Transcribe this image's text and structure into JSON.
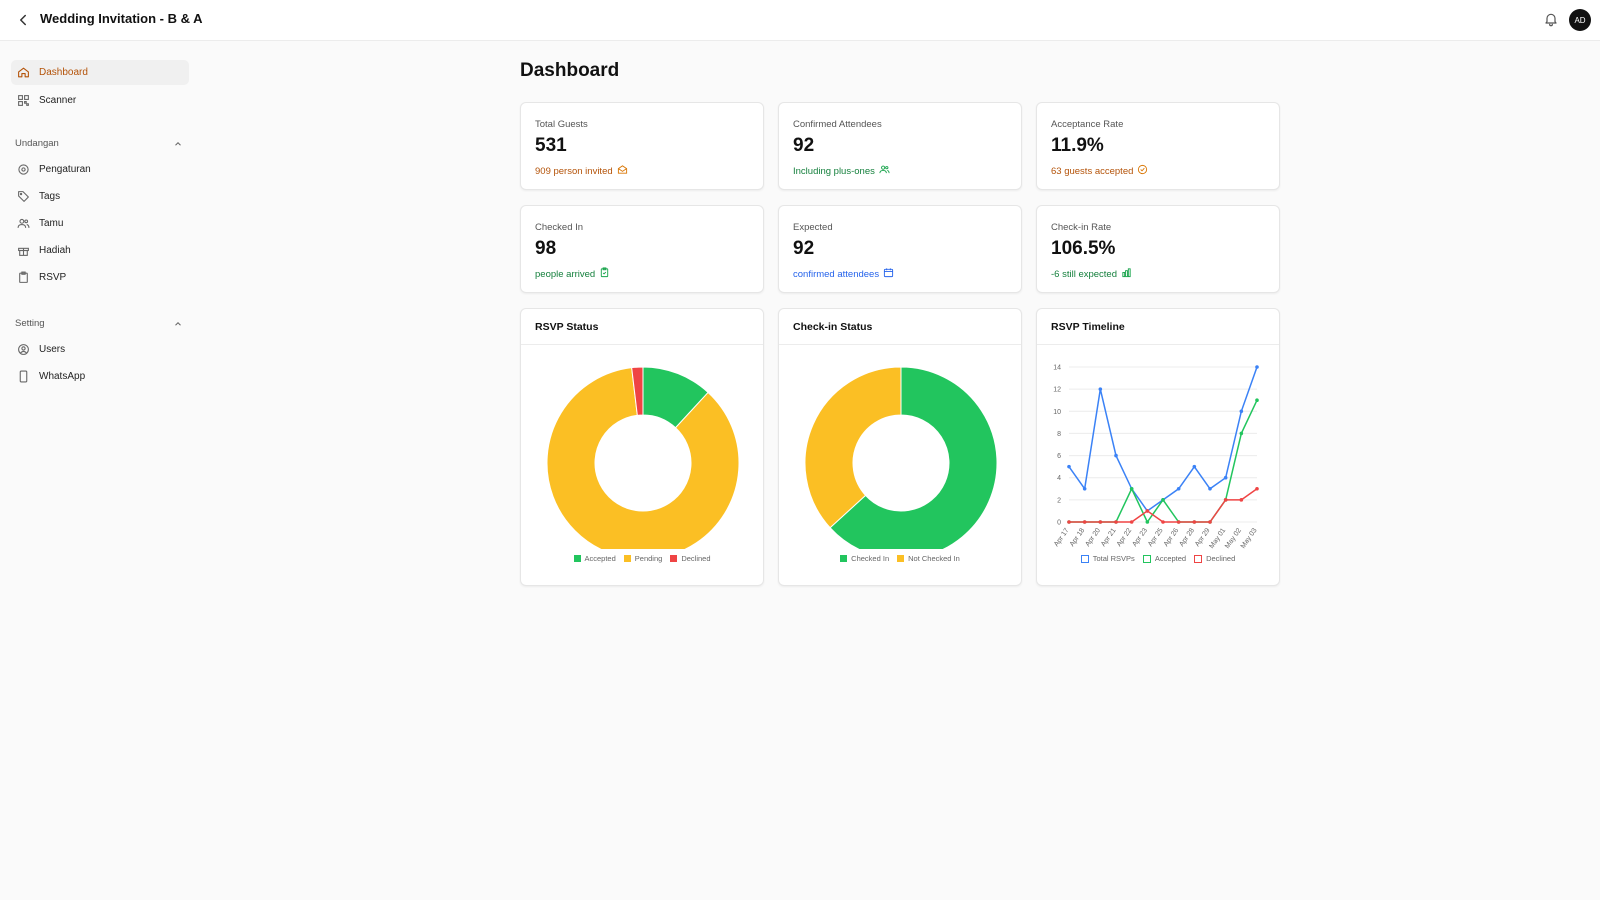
{
  "header": {
    "title": "Wedding Invitation - B & A",
    "avatar_initials": "AD"
  },
  "sidebar": {
    "top_items": [
      {
        "label": "Dashboard",
        "icon": "home-icon",
        "active": true
      },
      {
        "label": "Scanner",
        "icon": "qr-icon",
        "active": false
      }
    ],
    "sections": [
      {
        "label": "Undangan",
        "items": [
          {
            "label": "Pengaturan",
            "icon": "gear-icon"
          },
          {
            "label": "Tags",
            "icon": "tag-icon"
          },
          {
            "label": "Tamu",
            "icon": "users-icon"
          },
          {
            "label": "Hadiah",
            "icon": "gift-icon"
          },
          {
            "label": "RSVP",
            "icon": "clipboard-icon"
          }
        ]
      },
      {
        "label": "Setting",
        "items": [
          {
            "label": "Users",
            "icon": "user-circle-icon"
          },
          {
            "label": "WhatsApp",
            "icon": "phone-icon"
          }
        ]
      }
    ]
  },
  "main": {
    "title": "Dashboard",
    "stats": [
      {
        "label": "Total Guests",
        "value": "531",
        "sub": "909 person invited",
        "icon": "mail-open-icon",
        "color": "#b45309"
      },
      {
        "label": "Confirmed Attendees",
        "value": "92",
        "sub": "Including plus-ones",
        "icon": "users-icon",
        "color": "#15803d"
      },
      {
        "label": "Acceptance Rate",
        "value": "11.9%",
        "sub": "63 guests accepted",
        "icon": "check-circle-icon",
        "color": "#b45309"
      },
      {
        "label": "Checked In",
        "value": "98",
        "sub": "people arrived",
        "icon": "clipboard-check-icon",
        "color": "#15803d"
      },
      {
        "label": "Expected",
        "value": "92",
        "sub": "confirmed attendees",
        "icon": "calendar-icon",
        "color": "#2563eb"
      },
      {
        "label": "Check-in Rate",
        "value": "106.5%",
        "sub": "-6 still expected",
        "icon": "bar-chart-icon",
        "color": "#15803d"
      }
    ]
  },
  "colors": {
    "green": "#22c55e",
    "yellow": "#fbbf24",
    "red": "#ef4444",
    "blue": "#3b82f6"
  },
  "chart_data": [
    {
      "type": "pie",
      "title": "RSVP Status",
      "categories": [
        "Accepted",
        "Pending",
        "Declined"
      ],
      "values": [
        63,
        458,
        10
      ],
      "colors": [
        "#22c55e",
        "#fbbf24",
        "#ef4444"
      ]
    },
    {
      "type": "pie",
      "title": "Check-in Status",
      "categories": [
        "Checked In",
        "Not Checked In"
      ],
      "values": [
        98,
        57
      ],
      "colors": [
        "#22c55e",
        "#fbbf24"
      ]
    },
    {
      "type": "line",
      "title": "RSVP Timeline",
      "x": [
        "Apr 17",
        "Apr 18",
        "Apr 20",
        "Apr 21",
        "Apr 22",
        "Apr 23",
        "Apr 25",
        "Apr 26",
        "Apr 28",
        "Apr 29",
        "May 01",
        "May 02",
        "May 03"
      ],
      "ylim": [
        0,
        14
      ],
      "yticks": [
        0,
        2,
        4,
        6,
        8,
        10,
        12,
        14
      ],
      "series": [
        {
          "name": "Total RSVPs",
          "color": "#3b82f6",
          "values": [
            5,
            3,
            12,
            6,
            3,
            1,
            2,
            3,
            5,
            3,
            4,
            10,
            14
          ]
        },
        {
          "name": "Accepted",
          "color": "#22c55e",
          "values": [
            0,
            0,
            0,
            0,
            3,
            0,
            2,
            0,
            0,
            0,
            2,
            8,
            11
          ]
        },
        {
          "name": "Declined",
          "color": "#ef4444",
          "values": [
            0,
            0,
            0,
            0,
            0,
            1,
            0,
            0,
            0,
            0,
            2,
            2,
            3
          ]
        }
      ],
      "grid": true,
      "legend": "bottom"
    }
  ]
}
